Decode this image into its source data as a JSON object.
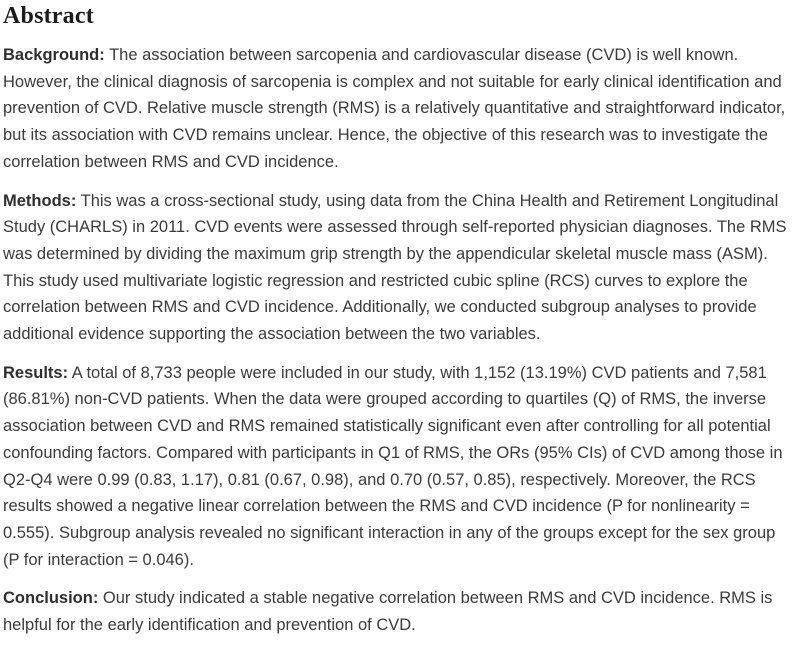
{
  "abstract": {
    "heading": "Abstract",
    "paragraphs": [
      {
        "label": "Background:",
        "text": "The association between sarcopenia and cardiovascular disease (CVD) is well known. However, the clinical diagnosis of sarcopenia is complex and not suitable for early clinical identification and prevention of CVD. Relative muscle strength (RMS) is a relatively quantitative and straightforward indicator, but its association with CVD remains unclear. Hence, the objective of this research was to investigate the correlation between RMS and CVD incidence."
      },
      {
        "label": "Methods:",
        "text": "This was a cross-sectional study, using data from the China Health and Retirement Longitudinal Study (CHARLS) in 2011. CVD events were assessed through self-reported physician diagnoses. The RMS was determined by dividing the maximum grip strength by the appendicular skeletal muscle mass (ASM). This study used multivariate logistic regression and restricted cubic spline (RCS) curves to explore the correlation between RMS and CVD incidence. Additionally, we conducted subgroup analyses to provide additional evidence supporting the association between the two variables."
      },
      {
        "label": "Results:",
        "text": "A total of 8,733 people were included in our study, with 1,152 (13.19%) CVD patients and 7,581 (86.81%) non-CVD patients. When the data were grouped according to quartiles (Q) of RMS, the inverse association between CVD and RMS remained statistically significant even after controlling for all potential confounding factors. Compared with participants in Q1 of RMS, the ORs (95% CIs) of CVD among those in Q2-Q4 were 0.99 (0.83, 1.17), 0.81 (0.67, 0.98), and 0.70 (0.57, 0.85), respectively. Moreover, the RCS results showed a negative linear correlation between the RMS and CVD incidence (P for nonlinearity = 0.555). Subgroup analysis revealed no significant interaction in any of the groups except for the sex group (P for interaction = 0.046)."
      },
      {
        "label": "Conclusion:",
        "text": "Our study indicated a stable negative correlation between RMS and CVD incidence. RMS is helpful for the early identification and prevention of CVD."
      }
    ],
    "colors": {
      "background": "#ffffff",
      "heading_text": "#1c1c1c",
      "body_text": "#3b3b3b"
    }
  }
}
